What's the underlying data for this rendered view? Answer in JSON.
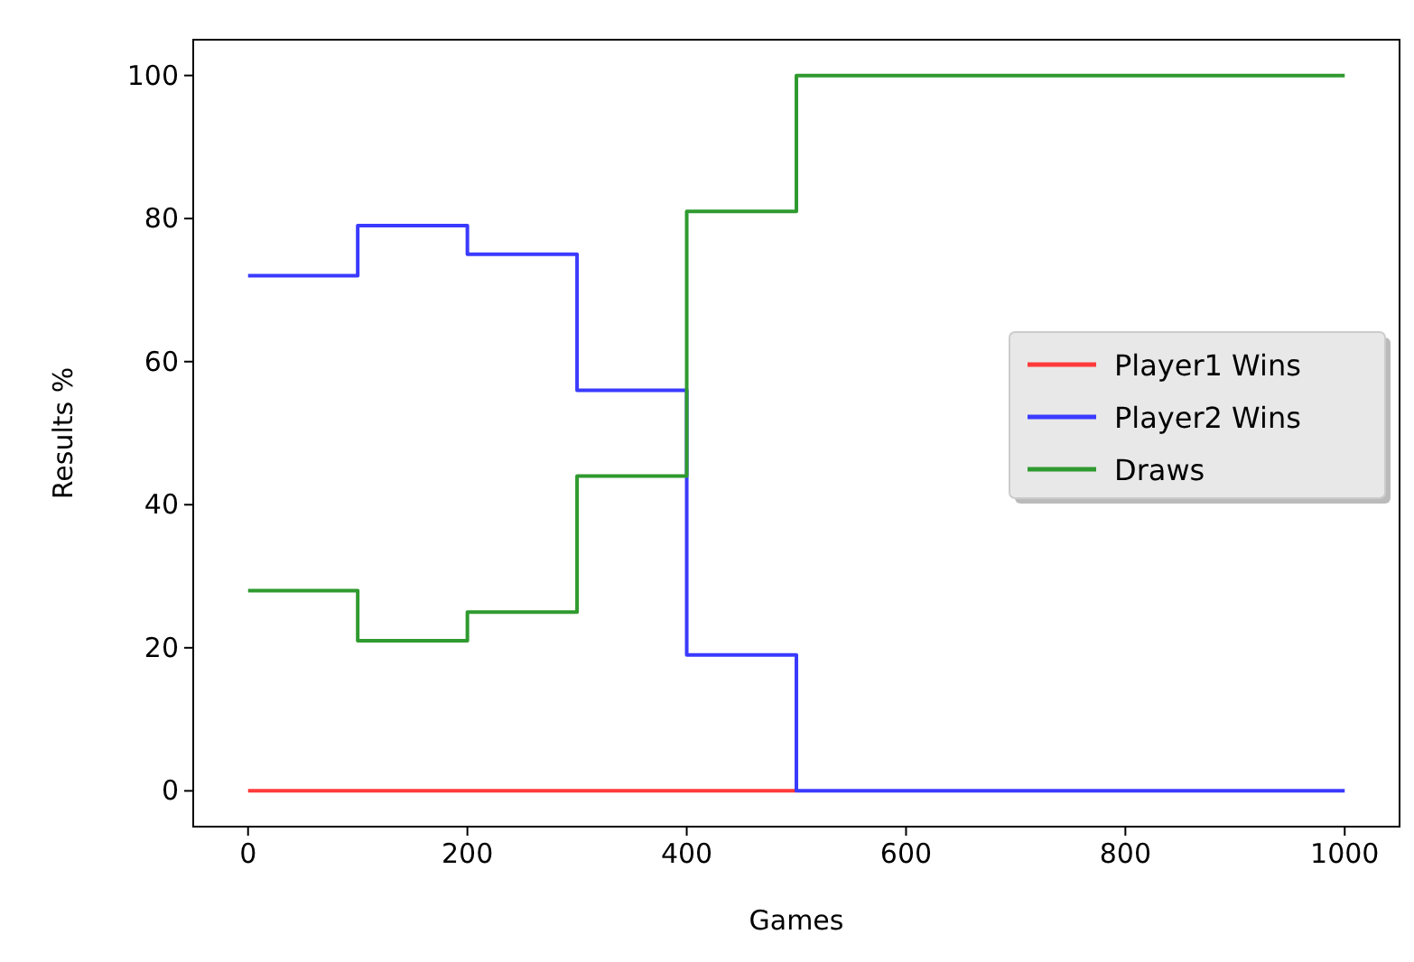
{
  "chart_data": {
    "type": "step",
    "xlabel": "Games",
    "ylabel": "Results %",
    "x": [
      0,
      100,
      200,
      300,
      400,
      500,
      600,
      700,
      800,
      900,
      1000
    ],
    "series": [
      {
        "name": "Player1 Wins",
        "color": "#ff3a3a",
        "values": [
          0,
          0,
          0,
          0,
          0,
          0,
          null,
          null,
          null,
          null,
          null
        ]
      },
      {
        "name": "Player2 Wins",
        "color": "#3a3aff",
        "values": [
          72,
          79,
          75,
          56,
          19,
          0,
          0,
          0,
          0,
          0,
          0
        ]
      },
      {
        "name": "Draws",
        "color": "#2f9a2f",
        "values": [
          28,
          21,
          25,
          44,
          81,
          100,
          100,
          100,
          100,
          100,
          100
        ]
      }
    ],
    "xlim": [
      -50,
      1050
    ],
    "ylim": [
      -5,
      105
    ],
    "xticks": [
      0,
      200,
      400,
      600,
      800,
      1000
    ],
    "yticks": [
      0,
      20,
      40,
      60,
      80,
      100
    ],
    "legend": "right",
    "grid": false,
    "marker": "none",
    "line_style": "solid"
  }
}
